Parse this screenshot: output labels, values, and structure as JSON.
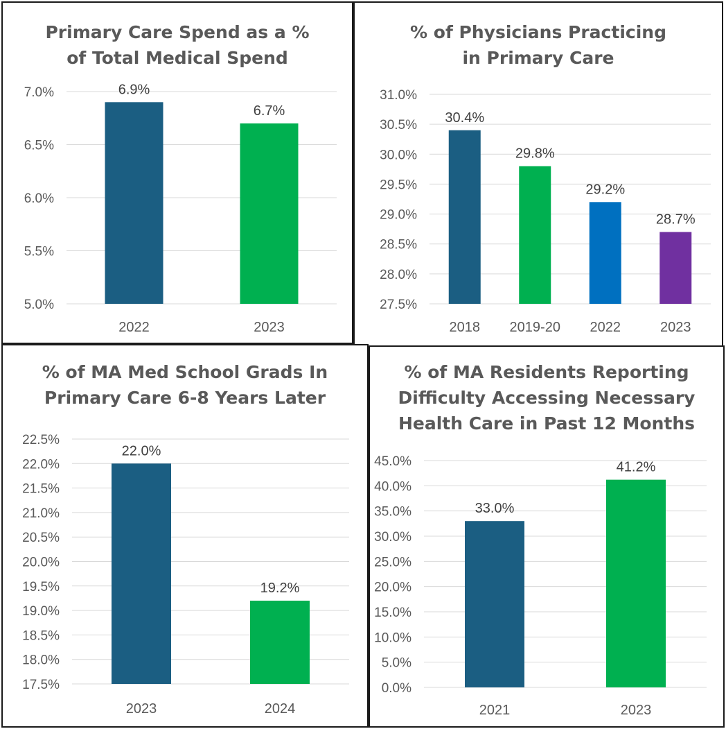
{
  "chart_data": [
    {
      "type": "bar",
      "title_lines": [
        "Primary Care Spend as a %",
        "of Total Medical Spend"
      ],
      "categories": [
        "2022",
        "2023"
      ],
      "values": [
        6.9,
        6.7
      ],
      "data_labels": [
        "6.9%",
        "6.7%"
      ],
      "colors": [
        "#1b5e82",
        "#00b050"
      ],
      "ylim": [
        5.0,
        7.0
      ],
      "yticks": [
        "5.0%",
        "5.5%",
        "6.0%",
        "6.5%",
        "7.0%"
      ],
      "grid": true
    },
    {
      "type": "bar",
      "title_lines": [
        "% of Physicians Practicing",
        "in Primary Care"
      ],
      "categories": [
        "2018",
        "2019-20",
        "2022",
        "2023"
      ],
      "values": [
        30.4,
        29.8,
        29.2,
        28.7
      ],
      "data_labels": [
        "30.4%",
        "29.8%",
        "29.2%",
        "28.7%"
      ],
      "colors": [
        "#1b5e82",
        "#00b050",
        "#0070c0",
        "#7030a0"
      ],
      "ylim": [
        27.5,
        31.0
      ],
      "yticks": [
        "27.5%",
        "28.0%",
        "28.5%",
        "29.0%",
        "29.5%",
        "30.0%",
        "30.5%",
        "31.0%"
      ],
      "grid": true
    },
    {
      "type": "bar",
      "title_lines": [
        "% of MA Med School Grads In",
        "Primary Care 6-8 Years Later"
      ],
      "categories": [
        "2023",
        "2024"
      ],
      "values": [
        22.0,
        19.2
      ],
      "data_labels": [
        "22.0%",
        "19.2%"
      ],
      "colors": [
        "#1b5e82",
        "#00b050"
      ],
      "ylim": [
        17.5,
        22.5
      ],
      "yticks": [
        "17.5%",
        "18.0%",
        "18.5%",
        "19.0%",
        "19.5%",
        "20.0%",
        "20.5%",
        "21.0%",
        "21.5%",
        "22.0%",
        "22.5%"
      ],
      "grid": true
    },
    {
      "type": "bar",
      "title_lines": [
        "% of MA Residents Reporting",
        "Difficulty Accessing Necessary",
        "Health Care in Past 12 Months"
      ],
      "categories": [
        "2021",
        "2023"
      ],
      "values": [
        33.0,
        41.2
      ],
      "data_labels": [
        "33.0%",
        "41.2%"
      ],
      "colors": [
        "#1b5e82",
        "#00b050"
      ],
      "ylim": [
        0.0,
        45.0
      ],
      "yticks": [
        "0.0%",
        "5.0%",
        "10.0%",
        "15.0%",
        "20.0%",
        "25.0%",
        "30.0%",
        "35.0%",
        "40.0%",
        "45.0%"
      ],
      "grid": true
    }
  ]
}
